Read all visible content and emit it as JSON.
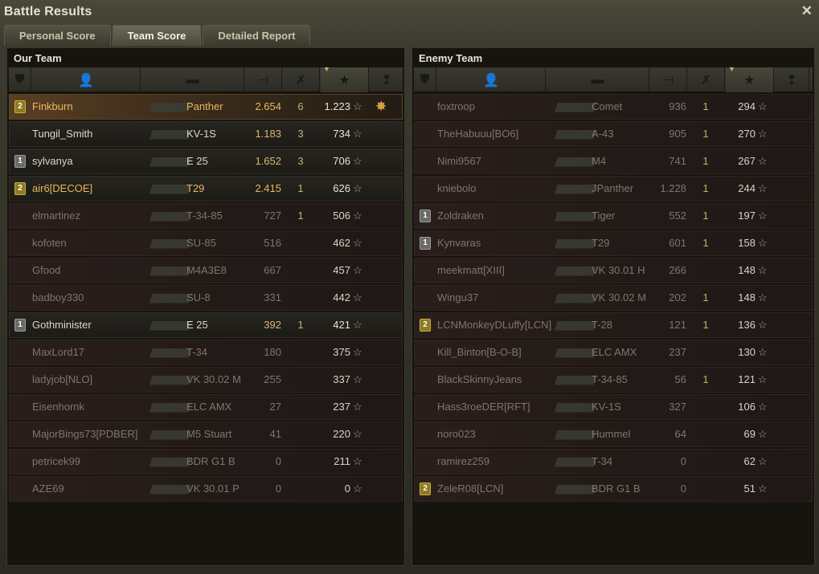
{
  "window": {
    "title": "Battle Results",
    "close_icon": "close-icon"
  },
  "tabs": [
    {
      "label": "Personal Score",
      "active": false
    },
    {
      "label": "Team Score",
      "active": true
    },
    {
      "label": "Detailed Report",
      "active": false
    }
  ],
  "columns": [
    "rank-icon",
    "player-icon",
    "vehicle-icon",
    "damage-icon",
    "kills-icon",
    "experience-icon",
    "medal-icon"
  ],
  "sorted_column": "experience",
  "our_team": {
    "title": "Our Team",
    "players": [
      {
        "badge": "2",
        "name": "Finkburn",
        "tank": "Panther",
        "damage": "2.654",
        "kills": "6",
        "xp": "1.223",
        "status": "self",
        "medal": true
      },
      {
        "badge": "",
        "name": "Tungil_Smith",
        "tank": "KV-1S",
        "damage": "1.183",
        "kills": "3",
        "xp": "734",
        "status": "alive"
      },
      {
        "badge": "1",
        "name": "sylvanya",
        "tank": "E 25",
        "damage": "1.652",
        "kills": "3",
        "xp": "706",
        "status": "alive"
      },
      {
        "badge": "2",
        "name": "air6[DECOE]",
        "tank": "T29",
        "damage": "2.415",
        "kills": "1",
        "xp": "626",
        "status": "squad"
      },
      {
        "badge": "",
        "name": "elmartinez",
        "tank": "T-34-85",
        "damage": "727",
        "kills": "1",
        "xp": "506",
        "status": "dead"
      },
      {
        "badge": "",
        "name": "kofoten",
        "tank": "SU-85",
        "damage": "516",
        "kills": "",
        "xp": "462",
        "status": "dead"
      },
      {
        "badge": "",
        "name": "Gfood",
        "tank": "M4A3E8",
        "damage": "667",
        "kills": "",
        "xp": "457",
        "status": "dead"
      },
      {
        "badge": "",
        "name": "badboy330",
        "tank": "SU-8",
        "damage": "331",
        "kills": "",
        "xp": "442",
        "status": "dead"
      },
      {
        "badge": "1",
        "name": "Gothminister",
        "tank": "E 25",
        "damage": "392",
        "kills": "1",
        "xp": "421",
        "status": "alive"
      },
      {
        "badge": "",
        "name": "MaxLord17",
        "tank": "T-34",
        "damage": "180",
        "kills": "",
        "xp": "375",
        "status": "dead"
      },
      {
        "badge": "",
        "name": "ladyjob[NLO]",
        "tank": "VK 30.02 M",
        "damage": "255",
        "kills": "",
        "xp": "337",
        "status": "dead"
      },
      {
        "badge": "",
        "name": "Eisenhornk",
        "tank": "ELC AMX",
        "damage": "27",
        "kills": "",
        "xp": "237",
        "status": "dead"
      },
      {
        "badge": "",
        "name": "MajorBings73[PDBER]",
        "tank": "M5 Stuart",
        "damage": "41",
        "kills": "",
        "xp": "220",
        "status": "dead"
      },
      {
        "badge": "",
        "name": "petricek99",
        "tank": "BDR G1 B",
        "damage": "0",
        "kills": "",
        "xp": "211",
        "status": "dead"
      },
      {
        "badge": "",
        "name": "AZE69",
        "tank": "VK 30.01 P",
        "damage": "0",
        "kills": "",
        "xp": "0",
        "status": "dead"
      }
    ]
  },
  "enemy_team": {
    "title": "Enemy Team",
    "players": [
      {
        "badge": "",
        "name": "foxtroop",
        "tank": "Comet",
        "damage": "936",
        "kills": "1",
        "xp": "294",
        "status": "dead"
      },
      {
        "badge": "",
        "name": "TheHabuuu[BO6]",
        "tank": "A-43",
        "damage": "905",
        "kills": "1",
        "xp": "270",
        "status": "dead"
      },
      {
        "badge": "",
        "name": "Nimi9567",
        "tank": "M4",
        "damage": "741",
        "kills": "1",
        "xp": "267",
        "status": "dead"
      },
      {
        "badge": "",
        "name": "kniebolo",
        "tank": "JPanther",
        "damage": "1.228",
        "kills": "1",
        "xp": "244",
        "status": "dead"
      },
      {
        "badge": "1",
        "name": "Zoldraken",
        "tank": "Tiger",
        "damage": "552",
        "kills": "1",
        "xp": "197",
        "status": "dead"
      },
      {
        "badge": "1",
        "name": "Kynvaras",
        "tank": "T29",
        "damage": "601",
        "kills": "1",
        "xp": "158",
        "status": "dead"
      },
      {
        "badge": "",
        "name": "meekmatt[XIII]",
        "tank": "VK 30.01 H",
        "damage": "266",
        "kills": "",
        "xp": "148",
        "status": "dead"
      },
      {
        "badge": "",
        "name": "Wingu37",
        "tank": "VK 30.02 M",
        "damage": "202",
        "kills": "1",
        "xp": "148",
        "status": "dead"
      },
      {
        "badge": "2",
        "name": "LCNMonkeyDLuffy[LCN]",
        "tank": "T-28",
        "damage": "121",
        "kills": "1",
        "xp": "136",
        "status": "dead"
      },
      {
        "badge": "",
        "name": "Kill_Binton[B-O-B]",
        "tank": "ELC AMX",
        "damage": "237",
        "kills": "",
        "xp": "130",
        "status": "dead"
      },
      {
        "badge": "",
        "name": "BlackSkinnyJeans",
        "tank": "T-34-85",
        "damage": "56",
        "kills": "1",
        "xp": "121",
        "status": "dead"
      },
      {
        "badge": "",
        "name": "Hass3roeDER[RFT]",
        "tank": "KV-1S",
        "damage": "327",
        "kills": "",
        "xp": "106",
        "status": "dead"
      },
      {
        "badge": "",
        "name": "noro023",
        "tank": "Hummel",
        "damage": "64",
        "kills": "",
        "xp": "69",
        "status": "dead"
      },
      {
        "badge": "",
        "name": "ramirez259",
        "tank": "T-34",
        "damage": "0",
        "kills": "",
        "xp": "62",
        "status": "dead"
      },
      {
        "badge": "2",
        "name": "ZeleR08[LCN]",
        "tank": "BDR G1 B",
        "damage": "0",
        "kills": "",
        "xp": "51",
        "status": "dead"
      }
    ]
  }
}
